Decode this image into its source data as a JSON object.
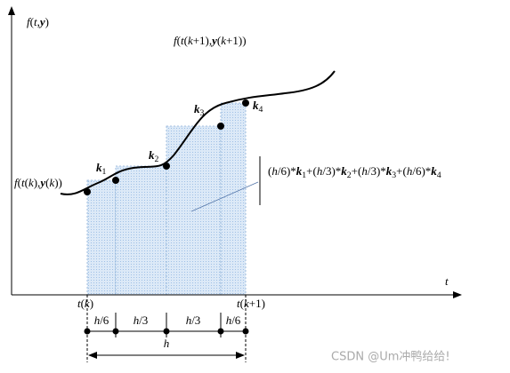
{
  "axis": {
    "y_label": [
      {
        "text": "f",
        "style": "italic"
      },
      {
        "text": "(",
        "style": "plain"
      },
      {
        "text": "t",
        "style": "italic"
      },
      {
        "text": ",",
        "style": "plain"
      },
      {
        "text": "y",
        "style": "bold"
      },
      {
        "text": ")",
        "style": "plain"
      }
    ],
    "x_label": [
      {
        "text": "t",
        "style": "italic"
      }
    ]
  },
  "point_labels": {
    "end": [
      {
        "text": "f",
        "style": "italic"
      },
      {
        "text": "(",
        "style": "plain"
      },
      {
        "text": "t",
        "style": "italic"
      },
      {
        "text": "(",
        "style": "plain"
      },
      {
        "text": "k",
        "style": "italic"
      },
      {
        "text": "+1),",
        "style": "plain"
      },
      {
        "text": "y",
        "style": "bold"
      },
      {
        "text": "(",
        "style": "plain"
      },
      {
        "text": "k",
        "style": "italic"
      },
      {
        "text": "+1))",
        "style": "plain"
      }
    ],
    "start": [
      {
        "text": "f",
        "style": "italic"
      },
      {
        "text": "(",
        "style": "plain"
      },
      {
        "text": "t",
        "style": "italic"
      },
      {
        "text": "(",
        "style": "plain"
      },
      {
        "text": "k",
        "style": "italic"
      },
      {
        "text": "),",
        "style": "plain"
      },
      {
        "text": "y",
        "style": "bold"
      },
      {
        "text": "(",
        "style": "plain"
      },
      {
        "text": "k",
        "style": "italic"
      },
      {
        "text": "))",
        "style": "plain"
      }
    ]
  },
  "slopes": [
    [
      {
        "text": "k",
        "style": "bold"
      },
      {
        "text": "1",
        "style": "sub"
      }
    ],
    [
      {
        "text": "k",
        "style": "bold"
      },
      {
        "text": "2",
        "style": "sub"
      }
    ],
    [
      {
        "text": "k",
        "style": "bold"
      },
      {
        "text": "3",
        "style": "sub"
      }
    ],
    [
      {
        "text": "k",
        "style": "bold"
      },
      {
        "text": "4",
        "style": "sub"
      }
    ]
  ],
  "formula": [
    {
      "text": "(",
      "style": "plain"
    },
    {
      "text": "h",
      "style": "italic"
    },
    {
      "text": "/6)*",
      "style": "plain"
    },
    {
      "text": "k",
      "style": "bold"
    },
    {
      "text": "1",
      "style": "sub"
    },
    {
      "text": "+(",
      "style": "plain"
    },
    {
      "text": "h",
      "style": "italic"
    },
    {
      "text": "/3)*",
      "style": "plain"
    },
    {
      "text": "k",
      "style": "bold"
    },
    {
      "text": "2",
      "style": "sub"
    },
    {
      "text": "+(",
      "style": "plain"
    },
    {
      "text": "h",
      "style": "italic"
    },
    {
      "text": "/3)*",
      "style": "plain"
    },
    {
      "text": "k",
      "style": "bold"
    },
    {
      "text": "3",
      "style": "sub"
    },
    {
      "text": "+(",
      "style": "plain"
    },
    {
      "text": "h",
      "style": "italic"
    },
    {
      "text": "/6)*",
      "style": "plain"
    },
    {
      "text": "k",
      "style": "bold"
    },
    {
      "text": "4",
      "style": "sub"
    }
  ],
  "time_labels": [
    [
      {
        "text": "t",
        "style": "italic"
      },
      {
        "text": "(",
        "style": "plain"
      },
      {
        "text": "k",
        "style": "italic"
      },
      {
        "text": ")",
        "style": "plain"
      }
    ],
    [
      {
        "text": "t",
        "style": "italic"
      },
      {
        "text": "(",
        "style": "plain"
      },
      {
        "text": "k",
        "style": "italic"
      },
      {
        "text": "+1)",
        "style": "plain"
      }
    ]
  ],
  "steps": [
    [
      {
        "text": "h",
        "style": "italic"
      },
      {
        "text": "/6",
        "style": "plain"
      }
    ],
    [
      {
        "text": "h",
        "style": "italic"
      },
      {
        "text": "/3",
        "style": "plain"
      }
    ],
    [
      {
        "text": "h",
        "style": "italic"
      },
      {
        "text": "/3",
        "style": "plain"
      }
    ],
    [
      {
        "text": "h",
        "style": "italic"
      },
      {
        "text": "/6",
        "style": "plain"
      }
    ]
  ],
  "total_step": [
    {
      "text": "h",
      "style": "italic"
    }
  ],
  "watermark": "CSDN @Um冲鸭给给!"
}
